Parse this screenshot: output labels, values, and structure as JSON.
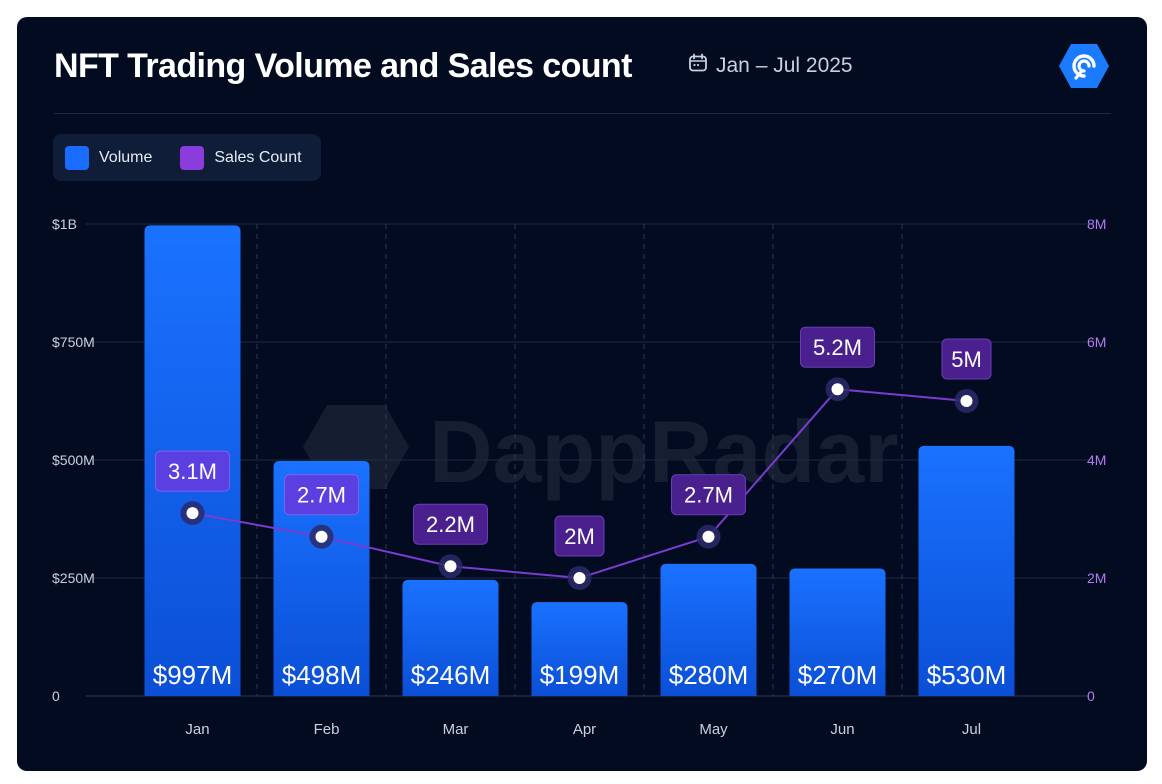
{
  "header": {
    "title": "NFT Trading Volume and Sales count",
    "date_range": "Jan – Jul 2025",
    "calendar_icon": "calendar-icon",
    "logo_icon": "dappradar-logo-icon"
  },
  "watermark": "DappRadar",
  "legend": [
    {
      "label": "Volume",
      "color": "#1a6bff"
    },
    {
      "label": "Sales Count",
      "color": "#8a3ddb"
    }
  ],
  "chart_data": {
    "type": "bar",
    "title": "NFT Trading Volume and Sales count",
    "categories": [
      "Jan",
      "Feb",
      "Mar",
      "Apr",
      "May",
      "Jun",
      "Jul"
    ],
    "series": [
      {
        "name": "Volume",
        "type": "bar",
        "axis": "left",
        "values": [
          997,
          498,
          246,
          199,
          280,
          270,
          530
        ],
        "labels": [
          "$997M",
          "$498M",
          "$246M",
          "$199M",
          "$280M",
          "$270M",
          "$530M"
        ]
      },
      {
        "name": "Sales Count",
        "type": "line",
        "axis": "right",
        "values": [
          3.1,
          2.7,
          2.2,
          2.0,
          2.7,
          5.2,
          5.0
        ],
        "labels": [
          "3.1M",
          "2.7M",
          "2.2M",
          "2M",
          "2.7M",
          "5.2M",
          "5M"
        ]
      }
    ],
    "y_left": {
      "range": [
        0,
        1000
      ],
      "ticks": [
        0,
        250,
        500,
        750,
        1000
      ],
      "tick_labels": [
        "0",
        "$250M",
        "$500M",
        "$750M",
        "$1B"
      ]
    },
    "y_right": {
      "range": [
        0,
        8
      ],
      "ticks": [
        0,
        2,
        4,
        6,
        8
      ],
      "tick_labels": [
        "0",
        "2M",
        "4M",
        "6M",
        "8M"
      ]
    },
    "colors": {
      "bar_top": "#1a72ff",
      "bar_bottom": "#0b4fd6",
      "line": "#7a3bd0",
      "callout_light": "#5b3fe0",
      "callout_dark": "#4a1f8e",
      "right_axis_text": "#b57cf2",
      "left_axis_text": "#c9d1e0",
      "grid": "#1e2b45"
    }
  }
}
